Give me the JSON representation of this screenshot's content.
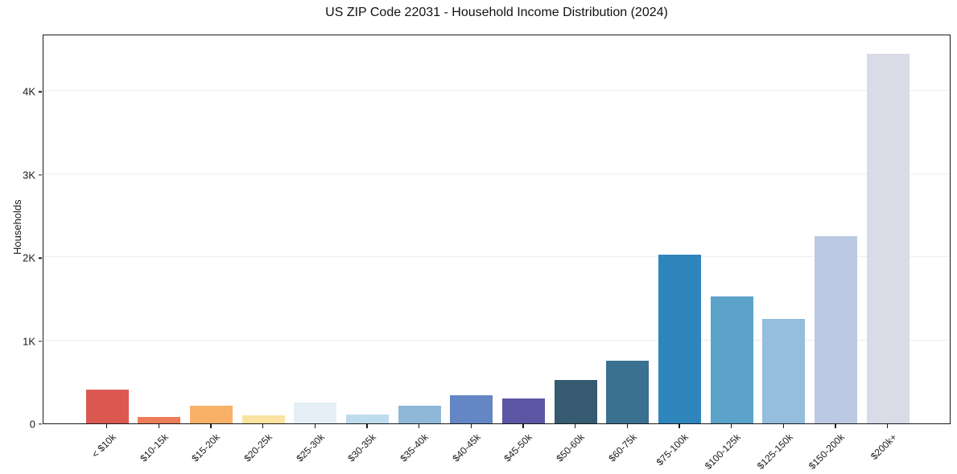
{
  "chart_data": {
    "type": "bar",
    "title": "US ZIP Code 22031 - Household Income Distribution (2024)",
    "ylabel": "Households",
    "xlabel": "",
    "categories": [
      "< $10k",
      "$10-15k",
      "$15-20k",
      "$20-25k",
      "$25-30k",
      "$30-35k",
      "$35-40k",
      "$40-45k",
      "$45-50k",
      "$50-60k",
      "$60-75k",
      "$75-100k",
      "$100-125k",
      "$125-150k",
      "$150-200k",
      "$200k+"
    ],
    "values": [
      410,
      75,
      210,
      100,
      250,
      110,
      215,
      340,
      300,
      525,
      750,
      2030,
      1530,
      1260,
      2250,
      4450
    ],
    "bar_colors": [
      "#dc5952",
      "#ec7b58",
      "#f9b168",
      "#fbe3a0",
      "#e4f0f6",
      "#bddcee",
      "#8fb8d8",
      "#6486c4",
      "#5c57a5",
      "#365a70",
      "#3a7090",
      "#2f86bd",
      "#5ba3c9",
      "#95bddc",
      "#bac9e1",
      "#d9dbe7"
    ],
    "yticks": {
      "values": [
        0,
        1000,
        2000,
        3000,
        4000
      ],
      "labels": [
        "0",
        "1K",
        "2K",
        "3K",
        "4K"
      ]
    },
    "ylim": [
      0,
      4690
    ],
    "grid": true,
    "legend": false,
    "background_color": "#ffffff",
    "gridline_color": "#ececec"
  }
}
